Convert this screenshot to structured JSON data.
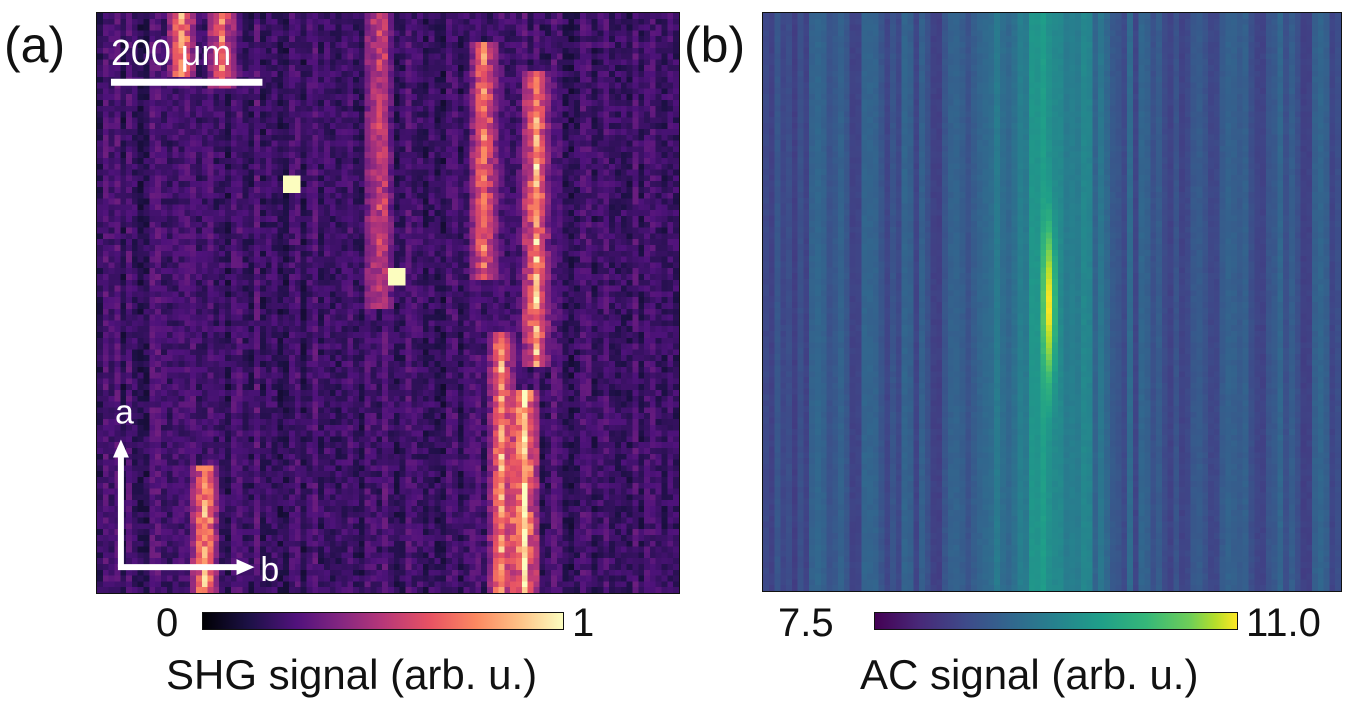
{
  "chart_data": [
    {
      "type": "heatmap",
      "panel_label": "(a)",
      "colormap": "magma",
      "colorbar": {
        "min_label": "0",
        "max_label": "1",
        "label": "SHG signal (arb. u.)",
        "range": [
          0,
          1
        ]
      },
      "scale_bar": {
        "label": "200 μm"
      },
      "axes_arrows": {
        "vertical": "a",
        "horizontal": "b"
      },
      "columns": 100,
      "rows": 100,
      "bright_streaks": [
        {
          "x": 0.14,
          "y_range": [
            0.0,
            0.1
          ],
          "intensity": 0.7
        },
        {
          "x": 0.21,
          "y_range": [
            0.0,
            0.12
          ],
          "intensity": 0.65
        },
        {
          "x": 0.18,
          "y_range": [
            0.78,
            1.0
          ],
          "intensity": 0.75
        },
        {
          "x": 0.48,
          "y_range": [
            0.0,
            0.5
          ],
          "intensity": 0.45
        },
        {
          "x": 0.66,
          "y_range": [
            0.05,
            0.45
          ],
          "intensity": 0.65
        },
        {
          "x": 0.75,
          "y_range": [
            0.1,
            0.6
          ],
          "intensity": 0.75
        },
        {
          "x": 0.69,
          "y_range": [
            0.55,
            1.0
          ],
          "intensity": 0.7
        },
        {
          "x": 0.73,
          "y_range": [
            0.65,
            1.0
          ],
          "intensity": 0.85
        }
      ],
      "hot_pixels": [
        {
          "x": 0.33,
          "y": 0.29
        },
        {
          "x": 0.51,
          "y": 0.45
        }
      ]
    },
    {
      "type": "heatmap",
      "panel_label": "(b)",
      "colormap": "viridis",
      "colorbar": {
        "min_label": "7.5",
        "max_label": "11.0",
        "label": "AC signal (arb. u.)",
        "range": [
          7.5,
          11.0
        ]
      },
      "columns": 100,
      "rows": 100,
      "central_ridge": {
        "x": 0.49,
        "peak_value": 11.0,
        "peak_y": 0.5,
        "baseline_value": 9.3
      },
      "background_value": 8.4
    }
  ]
}
